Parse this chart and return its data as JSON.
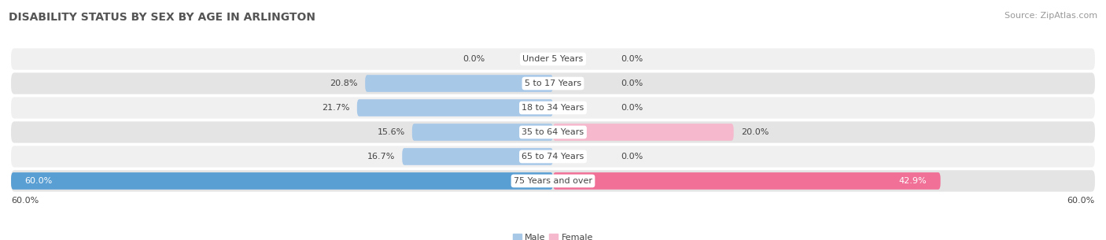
{
  "title": "DISABILITY STATUS BY SEX BY AGE IN ARLINGTON",
  "source": "Source: ZipAtlas.com",
  "categories": [
    "Under 5 Years",
    "5 to 17 Years",
    "18 to 34 Years",
    "35 to 64 Years",
    "65 to 74 Years",
    "75 Years and over"
  ],
  "male_values": [
    0.0,
    20.8,
    21.7,
    15.6,
    16.7,
    60.0
  ],
  "female_values": [
    0.0,
    0.0,
    0.0,
    20.0,
    0.0,
    42.9
  ],
  "male_color_normal": "#a8c8e8",
  "male_color_last": "#5a9fd4",
  "female_color_normal": "#f5b8cc",
  "female_color_last": "#f07098",
  "row_bg_light": "#f0f0f0",
  "row_bg_dark": "#e4e4e4",
  "axis_max": 60.0,
  "title_fontsize": 10,
  "source_fontsize": 8,
  "label_fontsize": 8,
  "category_fontsize": 8,
  "value_fontsize": 8,
  "background_color": "#ffffff",
  "text_color": "#444444",
  "value_text_last_male": "#ffffff",
  "value_text_last_female": "#ffffff"
}
